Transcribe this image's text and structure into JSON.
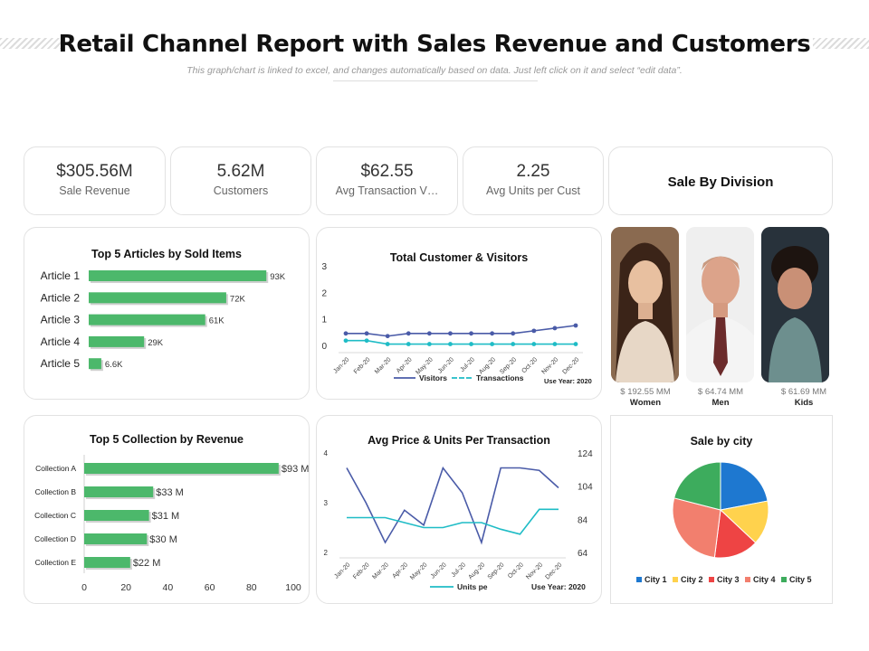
{
  "header": {
    "title": "Retail Channel Report with Sales Revenue and Customers",
    "subtitle": "This graph/chart is linked to excel, and changes automatically based on data. Just left click on it and select “edit data”."
  },
  "kpis": [
    {
      "value": "$305.56M",
      "label": "Sale Revenue"
    },
    {
      "value": "5.62M",
      "label": "Customers"
    },
    {
      "value": "$62.55",
      "label": "Avg Transaction V…"
    },
    {
      "value": "2.25",
      "label": "Avg Units per Cust"
    }
  ],
  "division": {
    "title": "Sale By Division",
    "items": [
      {
        "value": "$ 192.55 MM",
        "name": "Women"
      },
      {
        "value": "$ 64.74 MM",
        "name": "Men"
      },
      {
        "value": "$ 61.69 MM",
        "name": "Kids"
      }
    ]
  },
  "colors": {
    "bar_green": "#4cb86b",
    "line_blue": "#4a5ba8",
    "line_teal": "#1fbcc6"
  },
  "chart_data": [
    {
      "id": "articles",
      "type": "bar",
      "title": "Top 5 Articles by Sold Items",
      "categories": [
        "Article 1",
        "Article 2",
        "Article 3",
        "Article 4",
        "Article 5"
      ],
      "values": [
        93,
        72,
        61,
        29,
        6.6
      ],
      "labels": [
        "93K",
        "72K",
        "61K",
        "29K",
        "6.6K"
      ],
      "xlim": [
        0,
        100
      ]
    },
    {
      "id": "collections",
      "type": "bar",
      "title": "Top 5 Collection by Revenue",
      "categories": [
        "Collection A",
        "Collection B",
        "Collection C",
        "Collection D",
        "Collection E"
      ],
      "values": [
        93,
        33,
        31,
        30,
        22
      ],
      "labels": [
        "$93 M",
        "$33 M",
        "$31 M",
        "$30 M",
        "$22 M"
      ],
      "xticks": [
        "0",
        "20",
        "40",
        "60",
        "80",
        "100"
      ],
      "xlim": [
        0,
        100
      ]
    },
    {
      "id": "visitors",
      "type": "line",
      "title": "Total Customer & Visitors",
      "categories": [
        "Jan-20",
        "Feb-20",
        "Mar-20",
        "Apr-20",
        "May-20",
        "Jun-20",
        "Jul-20",
        "Aug-20",
        "Sep-20",
        "Oct-20",
        "Nov-20",
        "Dec-20"
      ],
      "yticks": [
        "0",
        "1",
        "2",
        "3"
      ],
      "ylim": [
        0,
        3
      ],
      "series": [
        {
          "name": "Visitors",
          "values": [
            0.45,
            0.45,
            0.35,
            0.45,
            0.45,
            0.45,
            0.45,
            0.45,
            0.45,
            0.55,
            0.65,
            0.75
          ]
        },
        {
          "name": "Transactions",
          "values": [
            0.18,
            0.18,
            0.05,
            0.05,
            0.05,
            0.05,
            0.05,
            0.05,
            0.05,
            0.05,
            0.05,
            0.05
          ]
        }
      ],
      "note": "Use Year: 2020"
    },
    {
      "id": "avgprice",
      "type": "line",
      "title": "Avg Price & Units Per Transaction",
      "categories": [
        "Jan-20",
        "Feb-20",
        "Mar-20",
        "Apr-20",
        "May-20",
        "Jun-20",
        "Jul-20",
        "Aug-20",
        "Sep-20",
        "Oct-20",
        "Nov-20",
        "Dec-20"
      ],
      "yticks_left": [
        "2",
        "3",
        "4"
      ],
      "ylim_left": [
        2,
        4
      ],
      "yticks_right": [
        "64",
        "84",
        "104",
        "124"
      ],
      "ylim_right": [
        64,
        124
      ],
      "series": [
        {
          "values": [
            3.7,
            3.0,
            2.2,
            2.85,
            2.55,
            3.7,
            3.2,
            2.2,
            3.7,
            3.7,
            3.65,
            3.3
          ],
          "axis": "left"
        },
        {
          "name": "Units pe",
          "values": [
            85,
            85,
            85,
            82,
            79,
            79,
            82,
            82,
            78,
            75,
            90,
            90
          ],
          "axis": "right"
        }
      ],
      "note": "Use Year: 2020"
    },
    {
      "id": "city",
      "type": "pie",
      "title": "Sale by city",
      "categories": [
        "City 1",
        "City 2",
        "City 3",
        "City 4",
        "City 5"
      ],
      "values": [
        22,
        15,
        15,
        27,
        21
      ],
      "colors": [
        "#1e78d0",
        "#ffd24d",
        "#ee4444",
        "#f27f6e",
        "#3dac5d"
      ]
    }
  ]
}
